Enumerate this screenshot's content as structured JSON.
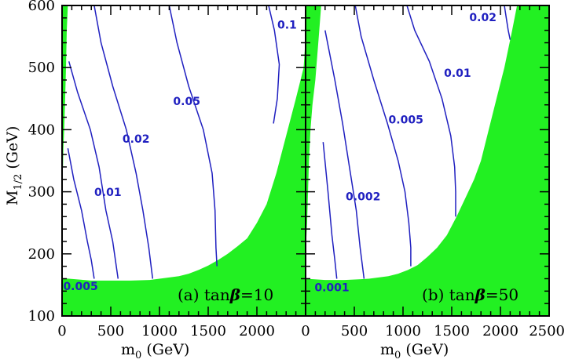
{
  "chart_data": {
    "type": "contour",
    "colors": {
      "excluded": "#22f022",
      "contour": "#2020c0",
      "frame": "#000000"
    },
    "ylabel_main": "M",
    "ylabel_sub": "1/2",
    "ylabel_unit": "(GeV)",
    "xlabel_main": "m",
    "xlabel_sub": "0",
    "xlabel_unit": "(GeV)",
    "yrange": [
      100,
      600
    ],
    "yticks": [
      "100",
      "200",
      "300",
      "400",
      "500",
      "600"
    ],
    "panels": [
      {
        "label_prefix": "(a) tan",
        "label_symbol": "β",
        "label_suffix": "=10",
        "xrange": [
          0,
          2500
        ],
        "xticks": [
          "0",
          "500",
          "1000",
          "1500",
          "2000"
        ],
        "excluded_regions": [
          [
            [
              0,
              600
            ],
            [
              60,
              600
            ],
            [
              48,
              560
            ],
            [
              40,
              500
            ],
            [
              30,
              440
            ],
            [
              22,
              400
            ],
            [
              14,
              370
            ],
            [
              10,
              340
            ],
            [
              0,
              340
            ]
          ],
          [
            [
              0,
              100
            ],
            [
              2500,
              100
            ],
            [
              2500,
              550
            ],
            [
              2480,
              500
            ],
            [
              2400,
              450
            ],
            [
              2300,
              390
            ],
            [
              2200,
              330
            ],
            [
              2100,
              280
            ],
            [
              2000,
              250
            ],
            [
              1900,
              225
            ],
            [
              1800,
              212
            ],
            [
              1700,
              200
            ],
            [
              1600,
              190
            ],
            [
              1500,
              181
            ],
            [
              1400,
              174
            ],
            [
              1300,
              168
            ],
            [
              1200,
              164
            ],
            [
              1100,
              162
            ],
            [
              1000,
              160
            ],
            [
              900,
              158
            ],
            [
              700,
              157
            ],
            [
              500,
              157
            ],
            [
              300,
              157
            ],
            [
              0,
              161
            ]
          ]
        ],
        "contours": [
          {
            "label": "0.005",
            "label_at": [
              190,
              147
            ],
            "points": [
              [
                60,
                370
              ],
              [
                120,
                320
              ],
              [
                200,
                270
              ],
              [
                260,
                220
              ],
              [
                300,
                190
              ],
              [
                330,
                160
              ]
            ]
          },
          {
            "label": "0.01",
            "label_at": [
              470,
              298
            ],
            "points": [
              [
                70,
                510
              ],
              [
                160,
                460
              ],
              [
                290,
                400
              ],
              [
                380,
                340
              ],
              [
                450,
                270
              ],
              [
                520,
                220
              ],
              [
                575,
                160
              ]
            ]
          },
          {
            "label": "0.02",
            "label_at": [
              760,
              384
            ],
            "points": [
              [
                330,
                600
              ],
              [
                400,
                540
              ],
              [
                520,
                470
              ],
              [
                660,
                400
              ],
              [
                760,
                330
              ],
              [
                830,
                270
              ],
              [
                890,
                210
              ],
              [
                930,
                160
              ]
            ]
          },
          {
            "label": "0.05",
            "label_at": [
              1280,
              445
            ],
            "points": [
              [
                1100,
                600
              ],
              [
                1180,
                540
              ],
              [
                1300,
                470
              ],
              [
                1450,
                400
              ],
              [
                1540,
                330
              ],
              [
                1570,
                270
              ],
              [
                1580,
                210
              ],
              [
                1590,
                180
              ]
            ]
          },
          {
            "label": "0.1",
            "label_at": [
              2310,
              568
            ],
            "points": [
              [
                2120,
                600
              ],
              [
                2180,
                560
              ],
              [
                2230,
                505
              ],
              [
                2210,
                450
              ],
              [
                2170,
                410
              ]
            ]
          }
        ]
      },
      {
        "label_prefix": "(b) tan",
        "label_symbol": "β",
        "label_suffix": "=50",
        "xrange": [
          0,
          2500
        ],
        "xticks": [
          "0",
          "500",
          "1000",
          "1500",
          "2000",
          "2500"
        ],
        "excluded_regions": [
          [
            [
              0,
              600
            ],
            [
              160,
              600
            ],
            [
              140,
              560
            ],
            [
              120,
              520
            ],
            [
              100,
              480
            ],
            [
              70,
              440
            ],
            [
              50,
              400
            ],
            [
              35,
              350
            ],
            [
              25,
              300
            ],
            [
              15,
              250
            ],
            [
              0,
              200
            ]
          ],
          [
            [
              0,
              100
            ],
            [
              2500,
              100
            ],
            [
              2500,
              600
            ],
            [
              2170,
              600
            ],
            [
              2120,
              560
            ],
            [
              2040,
              500
            ],
            [
              1960,
              450
            ],
            [
              1880,
              400
            ],
            [
              1800,
              350
            ],
            [
              1730,
              320
            ],
            [
              1640,
              290
            ],
            [
              1550,
              260
            ],
            [
              1450,
              230
            ],
            [
              1350,
              210
            ],
            [
              1250,
              195
            ],
            [
              1150,
              182
            ],
            [
              1050,
              174
            ],
            [
              950,
              168
            ],
            [
              850,
              164
            ],
            [
              750,
              162
            ],
            [
              650,
              160
            ],
            [
              550,
              159
            ],
            [
              400,
              158
            ],
            [
              300,
              158
            ],
            [
              200,
              158
            ],
            [
              0,
              160
            ]
          ]
        ],
        "contours": [
          {
            "label": "0.001",
            "label_at": [
              270,
              145
            ],
            "points": [
              [
                180,
                380
              ],
              [
                230,
                300
              ],
              [
                270,
                230
              ],
              [
                300,
                190
              ],
              [
                320,
                160
              ]
            ]
          },
          {
            "label": "0.002",
            "label_at": [
              590,
              291
            ],
            "points": [
              [
                200,
                560
              ],
              [
                300,
                480
              ],
              [
                380,
                410
              ],
              [
                460,
                330
              ],
              [
                520,
                270
              ],
              [
                560,
                210
              ],
              [
                600,
                160
              ]
            ]
          },
          {
            "label": "0.005",
            "label_at": [
              1030,
              415
            ],
            "points": [
              [
                510,
                600
              ],
              [
                570,
                550
              ],
              [
                700,
                480
              ],
              [
                840,
                410
              ],
              [
                950,
                350
              ],
              [
                1020,
                300
              ],
              [
                1060,
                250
              ],
              [
                1080,
                210
              ],
              [
                1080,
                180
              ]
            ]
          },
          {
            "label": "0.01",
            "label_at": [
              1560,
              490
            ],
            "points": [
              [
                1040,
                600
              ],
              [
                1120,
                560
              ],
              [
                1270,
                510
              ],
              [
                1400,
                450
              ],
              [
                1490,
                390
              ],
              [
                1530,
                340
              ],
              [
                1540,
                300
              ],
              [
                1540,
                260
              ]
            ]
          },
          {
            "label": "0.02",
            "label_at": [
              1820,
              580
            ],
            "points": [
              [
                2040,
                600
              ],
              [
                2060,
                580
              ],
              [
                2080,
                560
              ],
              [
                2100,
                545
              ]
            ]
          }
        ]
      }
    ]
  }
}
